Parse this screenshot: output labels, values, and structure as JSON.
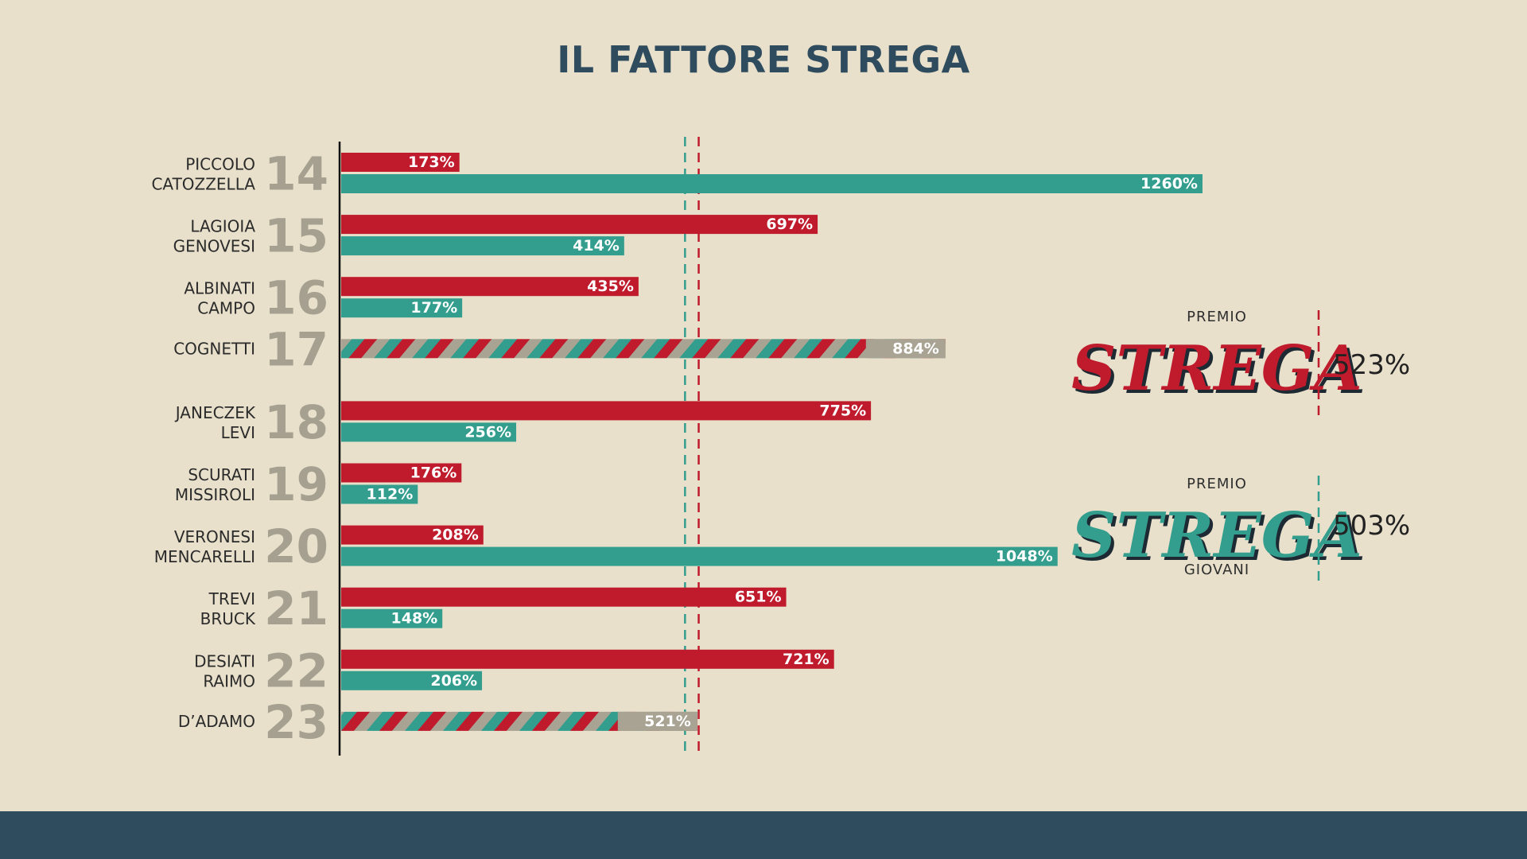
{
  "chart_data": {
    "type": "bar",
    "title": "IL FATTORE STREGA",
    "xlim": [
      0,
      1300
    ],
    "series": [
      {
        "key": "strega",
        "color": "#bf1b2c"
      },
      {
        "key": "giovani",
        "color": "#339e8e"
      }
    ],
    "rows": [
      {
        "year": "14",
        "names": [
          "PICCOLO",
          "CATOZZELLA"
        ],
        "strega": 173,
        "giovani": 1260,
        "strega_label": "173%",
        "giovani_label": "1260%"
      },
      {
        "year": "15",
        "names": [
          "LAGIOIA",
          "GENOVESI"
        ],
        "strega": 697,
        "giovani": 414,
        "strega_label": "697%",
        "giovani_label": "414%"
      },
      {
        "year": "16",
        "names": [
          "ALBINATI",
          "CAMPO"
        ],
        "strega": 435,
        "giovani": 177,
        "strega_label": "435%",
        "giovani_label": "177%"
      },
      {
        "year": "17",
        "names": [
          "COGNETTI"
        ],
        "combined": 884,
        "combined_label": "884%"
      },
      {
        "year": "18",
        "names": [
          "JANECZEK",
          "LEVI"
        ],
        "strega": 775,
        "giovani": 256,
        "strega_label": "775%",
        "giovani_label": "256%"
      },
      {
        "year": "19",
        "names": [
          "SCURATI",
          "MISSIROLI"
        ],
        "strega": 176,
        "giovani": 112,
        "strega_label": "176%",
        "giovani_label": "112%"
      },
      {
        "year": "20",
        "names": [
          "VERONESI",
          "MENCARELLI"
        ],
        "strega": 208,
        "giovani": 1048,
        "strega_label": "208%",
        "giovani_label": "1048%"
      },
      {
        "year": "21",
        "names": [
          "TREVI",
          "BRUCK"
        ],
        "strega": 651,
        "giovani": 148,
        "strega_label": "651%",
        "giovani_label": "148%"
      },
      {
        "year": "22",
        "names": [
          "DESIATI",
          "RAIMO"
        ],
        "strega": 721,
        "giovani": 206,
        "strega_label": "721%",
        "giovani_label": "206%"
      },
      {
        "year": "23",
        "names": [
          "D’ADAMO"
        ],
        "combined": 521,
        "combined_label": "521%"
      }
    ],
    "averages": [
      {
        "key": "giovani",
        "value": 503,
        "color": "#339e8e"
      },
      {
        "key": "strega",
        "value": 523,
        "color": "#bf1b2c"
      }
    ],
    "legend": [
      {
        "key": "strega",
        "top": "PREMIO",
        "brand": "STREGA",
        "bottom": "",
        "pct": "523%",
        "color": "#bf1b2c"
      },
      {
        "key": "giovani",
        "top": "PREMIO",
        "brand": "STREGA",
        "bottom": "GIOVANI",
        "pct": "503%",
        "color": "#339e8e"
      }
    ]
  }
}
